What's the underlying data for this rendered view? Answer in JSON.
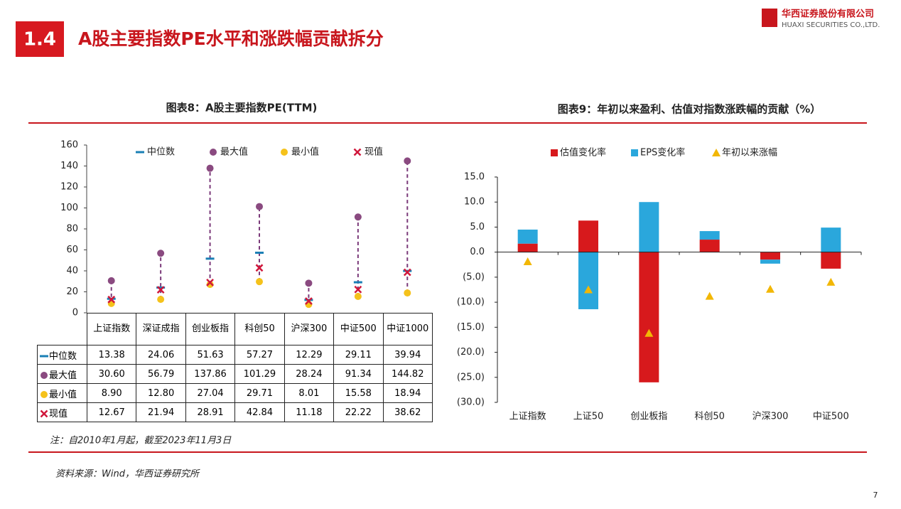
{
  "header": {
    "section": "1.4",
    "title": "A股主要指数PE水平和涨跌幅贡献拆分",
    "company": "华西证券股份有限公司",
    "company_en": "HUAXI SECURITIES CO.,LTD."
  },
  "chart_data": [
    {
      "type": "dot",
      "title": "图表8：A股主要指数PE(TTM)",
      "categories": [
        "上证指数",
        "深证成指",
        "创业板指",
        "科创50",
        "沪深300",
        "中证500",
        "中证1000"
      ],
      "series": [
        {
          "name": "中位数",
          "color": "#1a7fb5",
          "marker": "dash",
          "values": [
            13.38,
            24.06,
            51.63,
            57.27,
            12.29,
            29.11,
            39.94
          ],
          "value_labels": [
            "13.38",
            "24.06",
            "51.63",
            "57.27",
            "12.29",
            "29.11",
            "39.94"
          ]
        },
        {
          "name": "最大值",
          "color": "#8a4a80",
          "marker": "circle",
          "values": [
            30.6,
            56.79,
            137.86,
            101.29,
            28.24,
            91.34,
            144.82
          ],
          "value_labels": [
            "30.60",
            "56.79",
            "137.86",
            "101.29",
            "28.24",
            "91.34",
            "144.82"
          ]
        },
        {
          "name": "最小值",
          "color": "#f5c21b",
          "marker": "circle",
          "values": [
            8.9,
            12.8,
            27.04,
            29.71,
            8.01,
            15.58,
            18.94
          ],
          "value_labels": [
            "8.90",
            "12.80",
            "27.04",
            "29.71",
            "8.01",
            "15.58",
            "18.94"
          ]
        },
        {
          "name": "现值",
          "color": "#d0173b",
          "marker": "cross",
          "values": [
            12.67,
            21.94,
            28.91,
            42.84,
            11.18,
            22.22,
            38.62
          ],
          "value_labels": [
            "12.67",
            "21.94",
            "28.91",
            "42.84",
            "11.18",
            "22.22",
            "38.62"
          ]
        }
      ],
      "ylim": [
        0,
        160
      ],
      "yticks": [
        0,
        20,
        40,
        60,
        80,
        100,
        120,
        140,
        160
      ],
      "grid": false
    },
    {
      "type": "bar",
      "stacked": true,
      "title": "图表9：年初以来盈利、估值对指数涨跌幅的贡献（%）",
      "categories": [
        "上证指数",
        "上证50",
        "创业板指",
        "科创50",
        "沪深300",
        "中证500"
      ],
      "series": [
        {
          "name": "估值变化率",
          "color": "#d7191c",
          "values": [
            1.7,
            6.3,
            -26,
            2.5,
            -1.5,
            -3.3
          ]
        },
        {
          "name": "EPS变化率",
          "color": "#2aa7dc",
          "values": [
            2.8,
            -11.4,
            10,
            1.7,
            -0.8,
            4.9
          ]
        },
        {
          "name": "年初以来涨幅",
          "type": "scatter",
          "marker": "triangle",
          "color": "#f2b705",
          "values": [
            -1.9,
            -7.5,
            -16.2,
            -8.8,
            -7.4,
            -6.0
          ]
        }
      ],
      "ylim": [
        -30,
        15
      ],
      "yticks": [
        {
          "value": 15,
          "label": "15.0"
        },
        {
          "value": 10,
          "label": "10.0"
        },
        {
          "value": 5,
          "label": "5.0"
        },
        {
          "value": 0,
          "label": "0.0"
        },
        {
          "value": -5,
          "label": "(5.0)"
        },
        {
          "value": -10,
          "label": "(10.0)"
        },
        {
          "value": -15,
          "label": "(15.0)"
        },
        {
          "value": -20,
          "label": "(20.0)"
        },
        {
          "value": -25,
          "label": "(25.0)"
        },
        {
          "value": -30,
          "label": "(30.0)"
        }
      ],
      "grid": false
    }
  ],
  "note": "注：自2010年1月起，截至2023年11月3日",
  "source": "资料来源：Wind，华西证券研究所",
  "page_number": "7"
}
